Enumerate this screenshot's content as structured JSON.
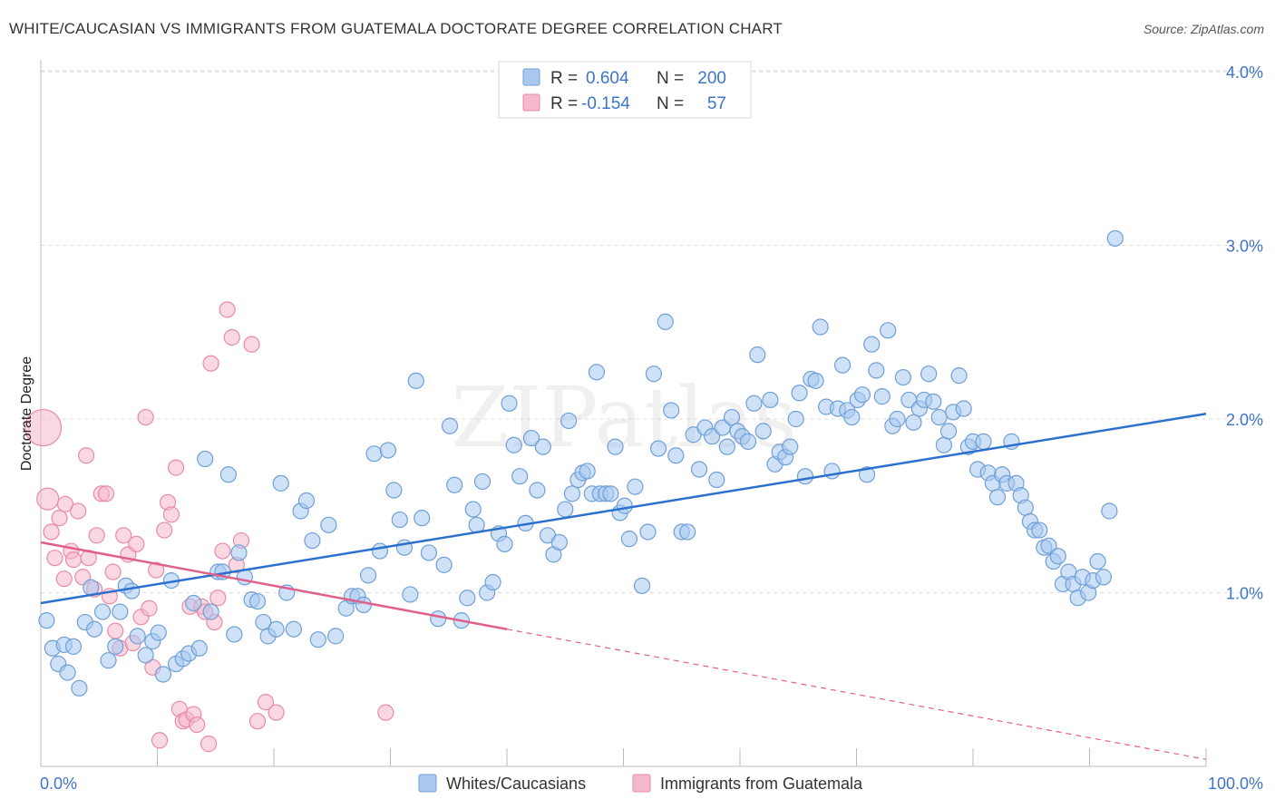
{
  "header": {
    "title": "WHITE/CAUCASIAN VS IMMIGRANTS FROM GUATEMALA DOCTORATE DEGREE CORRELATION CHART",
    "source": "Source: ZipAtlas.com"
  },
  "watermark": "ZIPatlas",
  "stats_box": {
    "row1": {
      "r_label": "R =",
      "r_value": "0.604",
      "n_label": "N =",
      "n_value": "200"
    },
    "row2": {
      "r_label": "R =",
      "r_value": "-0.154",
      "n_label": "N =",
      "n_value": "57"
    }
  },
  "colors": {
    "blue_fill": "#a8c8f0",
    "blue_stroke": "#6f9fd8",
    "blue_line": "#2b6fcf",
    "pink_fill": "#f6b8cb",
    "pink_stroke": "#e98aa9",
    "pink_line": "#e0608a",
    "value_text": "#3d74c9",
    "grid": "#dddddd"
  },
  "chart_data": {
    "type": "scatter",
    "xlabel": "",
    "ylabel": "Doctorate Degree",
    "x_tick_labels": [
      "0.0%",
      "100.0%"
    ],
    "y_tick_labels": [
      "1.0%",
      "2.0%",
      "3.0%",
      "4.0%"
    ],
    "y_ticks": [
      1.0,
      2.0,
      3.0,
      4.0
    ],
    "xlim": [
      0,
      100
    ],
    "ylim": [
      0,
      4.1
    ],
    "grid": true,
    "legend_position": "bottom",
    "series": [
      {
        "name": "Whites/Caucasians",
        "color": "#a8c8f0",
        "trend": {
          "x": [
            0,
            100
          ],
          "y": [
            0.94,
            2.03
          ]
        },
        "points": [
          [
            0.5,
            0.84
          ],
          [
            1.0,
            0.68
          ],
          [
            1.5,
            0.59
          ],
          [
            2.0,
            0.7
          ],
          [
            2.3,
            0.54
          ],
          [
            2.8,
            0.69
          ],
          [
            3.3,
            0.45
          ],
          [
            3.8,
            0.83
          ],
          [
            4.3,
            1.03
          ],
          [
            4.6,
            0.79
          ],
          [
            5.3,
            0.89
          ],
          [
            5.8,
            0.61
          ],
          [
            6.4,
            0.69
          ],
          [
            6.8,
            0.89
          ],
          [
            7.3,
            1.04
          ],
          [
            7.8,
            1.01
          ],
          [
            8.3,
            0.75
          ],
          [
            9.0,
            0.64
          ],
          [
            9.6,
            0.72
          ],
          [
            10.1,
            0.77
          ],
          [
            10.5,
            0.53
          ],
          [
            11.2,
            1.07
          ],
          [
            11.6,
            0.59
          ],
          [
            12.2,
            0.62
          ],
          [
            12.7,
            0.65
          ],
          [
            13.1,
            0.94
          ],
          [
            13.6,
            0.68
          ],
          [
            14.1,
            1.77
          ],
          [
            14.6,
            0.89
          ],
          [
            15.2,
            1.12
          ],
          [
            15.6,
            1.12
          ],
          [
            16.1,
            1.68
          ],
          [
            16.6,
            0.76
          ],
          [
            17.0,
            1.23
          ],
          [
            17.5,
            1.09
          ],
          [
            18.1,
            0.96
          ],
          [
            18.6,
            0.95
          ],
          [
            19.1,
            0.83
          ],
          [
            19.5,
            0.75
          ],
          [
            20.2,
            0.79
          ],
          [
            20.6,
            1.63
          ],
          [
            21.1,
            1.0
          ],
          [
            21.7,
            0.79
          ],
          [
            22.3,
            1.47
          ],
          [
            22.8,
            1.53
          ],
          [
            23.3,
            1.3
          ],
          [
            23.8,
            0.73
          ],
          [
            24.7,
            1.39
          ],
          [
            25.3,
            0.75
          ],
          [
            26.2,
            0.91
          ],
          [
            26.7,
            0.98
          ],
          [
            27.2,
            0.98
          ],
          [
            27.7,
            0.93
          ],
          [
            28.1,
            1.1
          ],
          [
            28.6,
            1.8
          ],
          [
            29.1,
            1.24
          ],
          [
            29.8,
            1.82
          ],
          [
            30.3,
            1.59
          ],
          [
            30.8,
            1.42
          ],
          [
            31.2,
            1.26
          ],
          [
            31.7,
            0.99
          ],
          [
            32.2,
            2.22
          ],
          [
            32.7,
            1.43
          ],
          [
            33.3,
            1.23
          ],
          [
            34.1,
            0.85
          ],
          [
            34.6,
            1.16
          ],
          [
            35.1,
            1.96
          ],
          [
            35.5,
            1.62
          ],
          [
            36.1,
            0.84
          ],
          [
            36.6,
            0.97
          ],
          [
            37.1,
            1.48
          ],
          [
            37.4,
            1.39
          ],
          [
            37.9,
            1.64
          ],
          [
            38.3,
            1.0
          ],
          [
            38.8,
            1.06
          ],
          [
            39.3,
            1.34
          ],
          [
            39.8,
            1.28
          ],
          [
            40.2,
            2.09
          ],
          [
            40.6,
            1.85
          ],
          [
            41.1,
            1.67
          ],
          [
            41.6,
            1.4
          ],
          [
            42.1,
            1.89
          ],
          [
            42.6,
            1.59
          ],
          [
            43.1,
            1.84
          ],
          [
            43.5,
            1.33
          ],
          [
            44.0,
            1.22
          ],
          [
            44.5,
            1.29
          ],
          [
            45.0,
            1.48
          ],
          [
            45.3,
            1.99
          ],
          [
            45.6,
            1.57
          ],
          [
            46.1,
            1.65
          ],
          [
            46.5,
            1.69
          ],
          [
            46.9,
            1.7
          ],
          [
            47.3,
            1.57
          ],
          [
            47.7,
            2.27
          ],
          [
            48.0,
            1.57
          ],
          [
            48.5,
            1.57
          ],
          [
            48.9,
            1.57
          ],
          [
            49.3,
            1.84
          ],
          [
            49.7,
            1.46
          ],
          [
            50.1,
            1.5
          ],
          [
            50.5,
            1.31
          ],
          [
            51.0,
            1.61
          ],
          [
            51.6,
            1.04
          ],
          [
            52.1,
            1.35
          ],
          [
            52.6,
            2.26
          ],
          [
            53.0,
            1.83
          ],
          [
            53.6,
            2.56
          ],
          [
            54.1,
            2.05
          ],
          [
            54.5,
            1.79
          ],
          [
            55.0,
            1.35
          ],
          [
            55.5,
            1.35
          ],
          [
            56.0,
            1.91
          ],
          [
            56.5,
            1.71
          ],
          [
            57.0,
            1.95
          ],
          [
            57.6,
            1.9
          ],
          [
            58.0,
            1.65
          ],
          [
            58.5,
            1.95
          ],
          [
            58.9,
            1.84
          ],
          [
            59.3,
            2.01
          ],
          [
            59.8,
            1.93
          ],
          [
            60.2,
            1.9
          ],
          [
            60.7,
            1.87
          ],
          [
            61.2,
            2.09
          ],
          [
            61.5,
            2.37
          ],
          [
            62.0,
            1.93
          ],
          [
            62.6,
            2.11
          ],
          [
            63.0,
            1.74
          ],
          [
            63.4,
            1.81
          ],
          [
            63.9,
            1.78
          ],
          [
            64.3,
            1.84
          ],
          [
            64.8,
            2.0
          ],
          [
            65.1,
            2.15
          ],
          [
            65.6,
            1.67
          ],
          [
            66.1,
            2.23
          ],
          [
            66.5,
            2.22
          ],
          [
            66.9,
            2.53
          ],
          [
            67.4,
            2.07
          ],
          [
            67.9,
            1.7
          ],
          [
            68.4,
            2.06
          ],
          [
            68.8,
            2.31
          ],
          [
            69.2,
            2.05
          ],
          [
            69.6,
            2.01
          ],
          [
            70.1,
            2.11
          ],
          [
            70.5,
            2.14
          ],
          [
            70.9,
            1.68
          ],
          [
            71.3,
            2.43
          ],
          [
            71.7,
            2.28
          ],
          [
            72.2,
            2.13
          ],
          [
            72.7,
            2.51
          ],
          [
            73.1,
            1.96
          ],
          [
            73.5,
            2.0
          ],
          [
            74.0,
            2.24
          ],
          [
            74.5,
            2.11
          ],
          [
            74.9,
            1.98
          ],
          [
            75.4,
            2.06
          ],
          [
            75.8,
            2.11
          ],
          [
            76.2,
            2.26
          ],
          [
            76.6,
            2.1
          ],
          [
            77.1,
            2.01
          ],
          [
            77.5,
            1.85
          ],
          [
            77.9,
            1.93
          ],
          [
            78.3,
            2.04
          ],
          [
            78.8,
            2.25
          ],
          [
            79.2,
            2.06
          ],
          [
            79.6,
            1.84
          ],
          [
            80.0,
            1.87
          ],
          [
            80.4,
            1.71
          ],
          [
            80.9,
            1.87
          ],
          [
            81.3,
            1.69
          ],
          [
            81.7,
            1.63
          ],
          [
            82.1,
            1.55
          ],
          [
            82.5,
            1.68
          ],
          [
            82.9,
            1.63
          ],
          [
            83.3,
            1.87
          ],
          [
            83.7,
            1.63
          ],
          [
            84.1,
            1.56
          ],
          [
            84.5,
            1.49
          ],
          [
            84.9,
            1.41
          ],
          [
            85.3,
            1.36
          ],
          [
            85.7,
            1.36
          ],
          [
            86.1,
            1.26
          ],
          [
            86.5,
            1.27
          ],
          [
            86.9,
            1.18
          ],
          [
            87.3,
            1.21
          ],
          [
            87.7,
            1.05
          ],
          [
            88.2,
            1.12
          ],
          [
            88.6,
            1.05
          ],
          [
            89.0,
            0.97
          ],
          [
            89.4,
            1.09
          ],
          [
            89.9,
            1.0
          ],
          [
            90.3,
            1.07
          ],
          [
            90.7,
            1.18
          ],
          [
            91.2,
            1.09
          ],
          [
            91.7,
            1.47
          ],
          [
            92.2,
            3.04
          ]
        ]
      },
      {
        "name": "Immigrants from Guatemala",
        "color": "#f6b8cb",
        "trend": {
          "x": [
            0,
            40
          ],
          "y": [
            1.29,
            0.79
          ]
        },
        "trend_dashed": {
          "x": [
            40,
            100
          ],
          "y": [
            0.79,
            0.04
          ]
        },
        "points": [
          [
            0.2,
            1.95
          ],
          [
            0.6,
            1.54
          ],
          [
            0.9,
            1.35
          ],
          [
            1.2,
            1.2
          ],
          [
            1.6,
            1.43
          ],
          [
            2.0,
            1.08
          ],
          [
            2.1,
            1.51
          ],
          [
            2.6,
            1.24
          ],
          [
            2.8,
            1.19
          ],
          [
            3.2,
            1.47
          ],
          [
            3.6,
            1.09
          ],
          [
            3.9,
            1.79
          ],
          [
            4.1,
            1.2
          ],
          [
            4.6,
            1.02
          ],
          [
            4.8,
            1.33
          ],
          [
            5.2,
            1.57
          ],
          [
            5.6,
            1.57
          ],
          [
            5.9,
            0.98
          ],
          [
            6.2,
            1.12
          ],
          [
            6.4,
            0.78
          ],
          [
            6.8,
            0.68
          ],
          [
            7.1,
            1.33
          ],
          [
            7.5,
            1.22
          ],
          [
            7.9,
            0.71
          ],
          [
            8.2,
            1.28
          ],
          [
            8.6,
            0.86
          ],
          [
            9.0,
            2.01
          ],
          [
            9.3,
            0.91
          ],
          [
            9.6,
            0.57
          ],
          [
            9.9,
            1.13
          ],
          [
            10.2,
            0.15
          ],
          [
            10.6,
            1.36
          ],
          [
            10.9,
            1.52
          ],
          [
            11.2,
            1.45
          ],
          [
            11.6,
            1.72
          ],
          [
            11.9,
            0.33
          ],
          [
            12.2,
            0.26
          ],
          [
            12.5,
            0.27
          ],
          [
            12.8,
            0.92
          ],
          [
            13.1,
            0.3
          ],
          [
            13.4,
            0.24
          ],
          [
            13.8,
            0.92
          ],
          [
            14.1,
            0.89
          ],
          [
            14.4,
            0.13
          ],
          [
            14.6,
            2.32
          ],
          [
            14.9,
            0.83
          ],
          [
            15.2,
            0.97
          ],
          [
            15.6,
            1.24
          ],
          [
            16.0,
            2.63
          ],
          [
            16.4,
            2.47
          ],
          [
            16.8,
            1.16
          ],
          [
            17.2,
            1.3
          ],
          [
            18.1,
            2.43
          ],
          [
            18.6,
            0.26
          ],
          [
            19.3,
            0.37
          ],
          [
            20.2,
            0.31
          ],
          [
            29.6,
            0.31
          ]
        ]
      }
    ]
  }
}
